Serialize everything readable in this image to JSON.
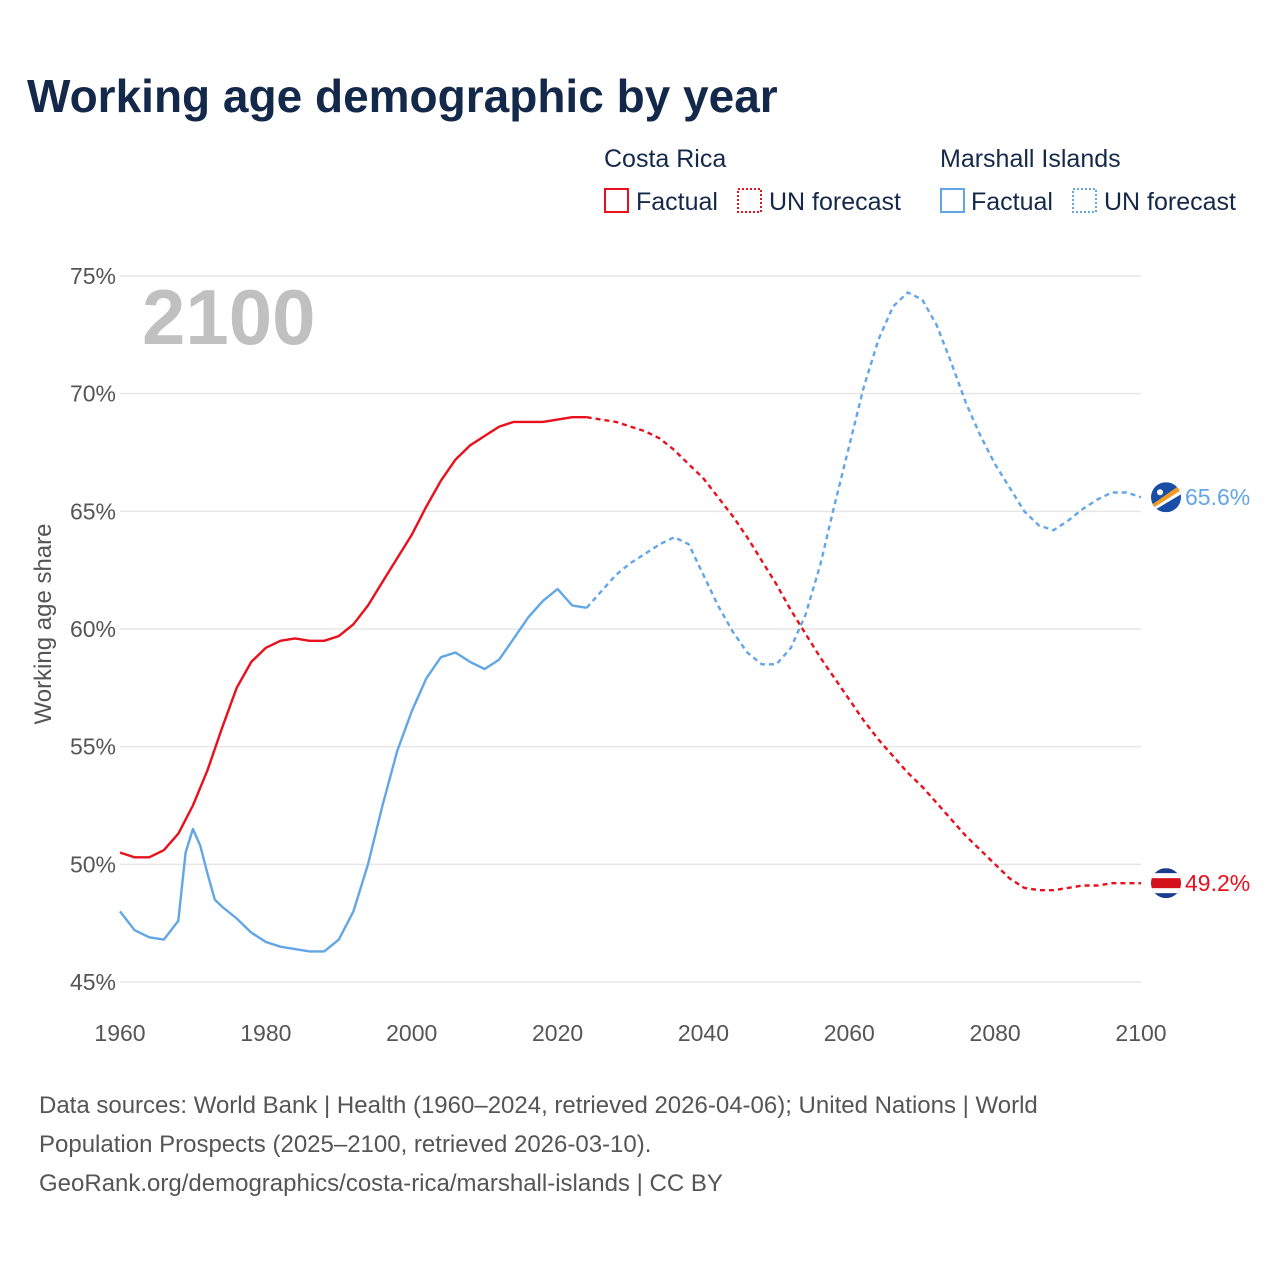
{
  "colors": {
    "costa_rica": "#e8101c",
    "marshall_islands": "#62a6e6",
    "title": "#14294a",
    "axis_text": "#555555",
    "grid": "#e6e6e6",
    "big_year": "#c0c0c0"
  },
  "chart_data": {
    "type": "line",
    "title": "Working age demographic by year",
    "xlabel": "",
    "ylabel": "Working age share",
    "xlim": [
      1960,
      2100
    ],
    "ylim": [
      45,
      75
    ],
    "x_ticks": [
      1960,
      1980,
      2000,
      2020,
      2040,
      2060,
      2080,
      2100
    ],
    "x_tick_labels": [
      "1960",
      "1980",
      "2000",
      "2020",
      "2040",
      "2060",
      "2080",
      "2100"
    ],
    "y_ticks": [
      45,
      50,
      55,
      60,
      65,
      70,
      75
    ],
    "y_tick_labels": [
      "45%",
      "50%",
      "55%",
      "60%",
      "65%",
      "70%",
      "75%"
    ],
    "grid": true,
    "year_watermark": "2100",
    "legend": {
      "placement": "top-right",
      "groups": [
        {
          "country": "Costa Rica",
          "factual_label": "Factual",
          "forecast_label": "UN forecast"
        },
        {
          "country": "Marshall Islands",
          "factual_label": "Factual",
          "forecast_label": "UN forecast"
        }
      ]
    },
    "series": [
      {
        "name": "Costa Rica",
        "key": "costa_rica",
        "end_label": "49.2%",
        "factual": {
          "x": [
            1960,
            1962,
            1964,
            1966,
            1968,
            1970,
            1972,
            1974,
            1976,
            1978,
            1980,
            1982,
            1984,
            1986,
            1988,
            1990,
            1992,
            1994,
            1996,
            1998,
            2000,
            2002,
            2004,
            2006,
            2008,
            2010,
            2012,
            2014,
            2016,
            2018,
            2020,
            2022,
            2024
          ],
          "y": [
            50.5,
            50.3,
            50.3,
            50.6,
            51.3,
            52.5,
            54.0,
            55.8,
            57.5,
            58.6,
            59.2,
            59.5,
            59.6,
            59.5,
            59.5,
            59.7,
            60.2,
            61.0,
            62.0,
            63.0,
            64.0,
            65.2,
            66.3,
            67.2,
            67.8,
            68.2,
            68.6,
            68.8,
            68.8,
            68.8,
            68.9,
            69.0,
            69.0
          ]
        },
        "forecast": {
          "x": [
            2024,
            2026,
            2028,
            2030,
            2032,
            2034,
            2036,
            2038,
            2040,
            2042,
            2044,
            2046,
            2048,
            2050,
            2052,
            2054,
            2056,
            2058,
            2060,
            2062,
            2064,
            2066,
            2068,
            2070,
            2072,
            2074,
            2076,
            2078,
            2080,
            2082,
            2084,
            2086,
            2088,
            2090,
            2092,
            2094,
            2096,
            2098,
            2100
          ],
          "y": [
            69.0,
            68.9,
            68.8,
            68.6,
            68.4,
            68.1,
            67.6,
            67.0,
            66.4,
            65.6,
            64.8,
            63.9,
            62.9,
            61.9,
            60.8,
            59.8,
            58.8,
            57.9,
            57.0,
            56.1,
            55.3,
            54.6,
            53.9,
            53.3,
            52.6,
            51.9,
            51.2,
            50.6,
            50.0,
            49.4,
            49.0,
            48.9,
            48.9,
            49.0,
            49.1,
            49.1,
            49.2,
            49.2,
            49.2
          ]
        }
      },
      {
        "name": "Marshall Islands",
        "key": "marshall_islands",
        "end_label": "65.6%",
        "factual": {
          "x": [
            1960,
            1962,
            1964,
            1966,
            1968,
            1969,
            1970,
            1971,
            1972,
            1973,
            1974,
            1976,
            1978,
            1980,
            1982,
            1984,
            1986,
            1988,
            1990,
            1992,
            1994,
            1996,
            1998,
            2000,
            2002,
            2004,
            2006,
            2008,
            2010,
            2012,
            2014,
            2016,
            2018,
            2020,
            2022,
            2024
          ],
          "y": [
            48.0,
            47.2,
            46.9,
            46.8,
            47.6,
            50.5,
            51.5,
            50.8,
            49.6,
            48.5,
            48.2,
            47.7,
            47.1,
            46.7,
            46.5,
            46.4,
            46.3,
            46.3,
            46.8,
            48.0,
            50.0,
            52.5,
            54.8,
            56.5,
            57.9,
            58.8,
            59.0,
            58.6,
            58.3,
            58.7,
            59.6,
            60.5,
            61.2,
            61.7,
            61.0,
            60.9
          ]
        },
        "forecast": {
          "x": [
            2024,
            2026,
            2028,
            2030,
            2032,
            2034,
            2036,
            2038,
            2040,
            2042,
            2044,
            2046,
            2048,
            2050,
            2052,
            2054,
            2056,
            2058,
            2060,
            2062,
            2064,
            2066,
            2068,
            2070,
            2072,
            2074,
            2076,
            2078,
            2080,
            2082,
            2084,
            2086,
            2088,
            2090,
            2092,
            2094,
            2096,
            2098,
            2100
          ],
          "y": [
            60.9,
            61.6,
            62.3,
            62.8,
            63.2,
            63.6,
            63.9,
            63.6,
            62.3,
            61.0,
            59.9,
            59.0,
            58.5,
            58.5,
            59.2,
            60.6,
            62.7,
            65.3,
            67.8,
            70.3,
            72.3,
            73.7,
            74.3,
            74.0,
            72.9,
            71.3,
            69.6,
            68.2,
            67.0,
            66.0,
            65.0,
            64.4,
            64.2,
            64.6,
            65.1,
            65.5,
            65.8,
            65.8,
            65.6
          ]
        }
      }
    ]
  },
  "footer": {
    "line1": "Data sources: World Bank | Health (1960–2024, retrieved 2026-04-06); United Nations | World",
    "line2": "Population Prospects (2025–2100, retrieved 2026-03-10).",
    "line3": "GeoRank.org/demographics/costa-rica/marshall-islands | CC BY"
  }
}
